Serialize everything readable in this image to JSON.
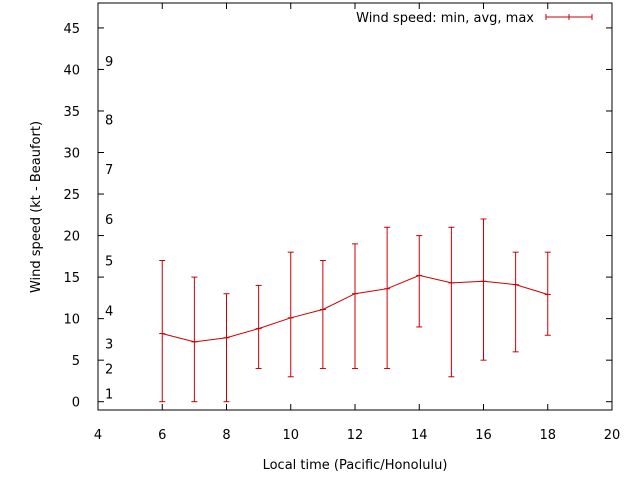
{
  "chart_data": {
    "type": "line",
    "title": "",
    "xlabel": "Local time (Pacific/Honolulu)",
    "ylabel": "Wind speed (kt - Beaufort)",
    "xlim": [
      4,
      20
    ],
    "ylim": [
      -1,
      48
    ],
    "xticks": [
      4,
      6,
      8,
      10,
      12,
      14,
      16,
      18,
      20
    ],
    "yticks": [
      0,
      5,
      10,
      15,
      20,
      25,
      30,
      35,
      40,
      45
    ],
    "beaufort": [
      {
        "label": "1",
        "y": 1.0
      },
      {
        "label": "2",
        "y": 4.0
      },
      {
        "label": "3",
        "y": 7.0
      },
      {
        "label": "4",
        "y": 11.0
      },
      {
        "label": "5",
        "y": 17.0
      },
      {
        "label": "6",
        "y": 22.0
      },
      {
        "label": "7",
        "y": 28.0
      },
      {
        "label": "8",
        "y": 34.0
      },
      {
        "label": "9",
        "y": 41.0
      }
    ],
    "legend": {
      "label": "Wind speed: min, avg, max",
      "position": "top-right"
    },
    "series": [
      {
        "name": "Wind speed: min, avg, max",
        "color": "#cc0000",
        "x": [
          6,
          7,
          8,
          9,
          10,
          11,
          12,
          13,
          14,
          15,
          16,
          17,
          18
        ],
        "avg": [
          8.2,
          7.2,
          7.7,
          8.8,
          10.1,
          11.1,
          13.0,
          13.6,
          15.2,
          14.3,
          14.5,
          14.1,
          12.9
        ],
        "min": [
          0,
          0,
          0,
          4,
          3,
          4,
          4,
          4,
          9,
          3,
          5,
          6,
          8
        ],
        "max": [
          17,
          15,
          13,
          14,
          18,
          17,
          19,
          21,
          20,
          21,
          22,
          18,
          18
        ]
      }
    ]
  }
}
